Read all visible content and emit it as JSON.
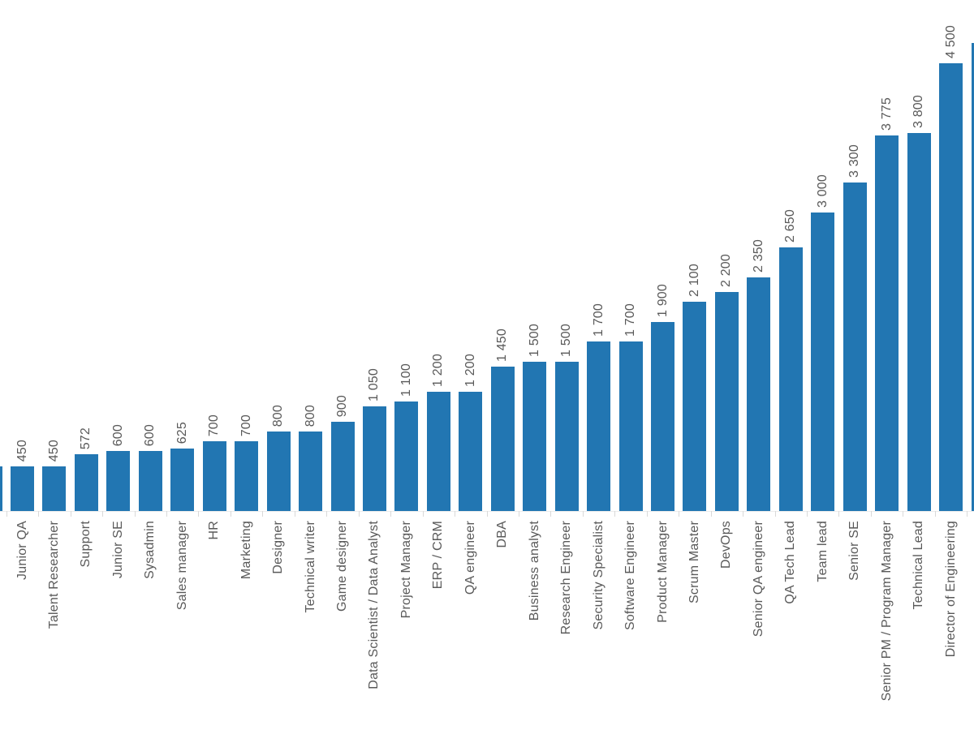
{
  "chart_data": {
    "type": "bar",
    "title": "",
    "xlabel": "",
    "ylabel": "",
    "legend": null,
    "gridlines": false,
    "orientation": "vertical-bars",
    "value_label_rotation": 90,
    "category_label_rotation": 90,
    "ylim": [
      0,
      4700
    ],
    "categories": [
      "Junior QA",
      "Talent Researcher",
      "Support",
      "Junior SE",
      "Sysadmin",
      "Sales manager",
      "HR",
      "Marketing",
      "Designer",
      "Technical writer",
      "Game designer",
      "Data Scientist / Data Analyst",
      "Project Manager",
      "ERP / CRM",
      "QA engineer",
      "DBA",
      "Business analyst",
      "Research Engineer",
      "Security Specialist",
      "Software Engineer",
      "Product Manager",
      "Scrum Master",
      "DevOps",
      "Senior QA engineer",
      "QA Tech Lead",
      "Team lead",
      "Senior SE",
      "Senior PM / Program Manager",
      "Technical Lead",
      "Director of Engineering"
    ],
    "values": [
      450,
      450,
      572,
      600,
      600,
      625,
      700,
      700,
      800,
      800,
      900,
      1050,
      1100,
      1200,
      1200,
      1450,
      1500,
      1500,
      1700,
      1700,
      1900,
      2100,
      2200,
      2350,
      2650,
      3000,
      3300,
      3775,
      3800,
      4500
    ],
    "value_labels": [
      "450",
      "450",
      "572",
      "600",
      "600",
      "625",
      "700",
      "700",
      "800",
      "800",
      "900",
      "1 050",
      "1 100",
      "1 200",
      "1 200",
      "1 450",
      "1 500",
      "1 500",
      "1 700",
      "1 700",
      "1 900",
      "2 100",
      "2 200",
      "2 350",
      "2 650",
      "3 000",
      "3 300",
      "3 775",
      "3 800",
      "4 500"
    ],
    "cut_off_edge_bars": {
      "left_estimated_value": 450,
      "right_estimated_value": 4700
    },
    "colors": {
      "bar": "#2276b2",
      "label_text": "#595959",
      "tick": "#d9d9d9",
      "baseline": "#ececec"
    }
  }
}
